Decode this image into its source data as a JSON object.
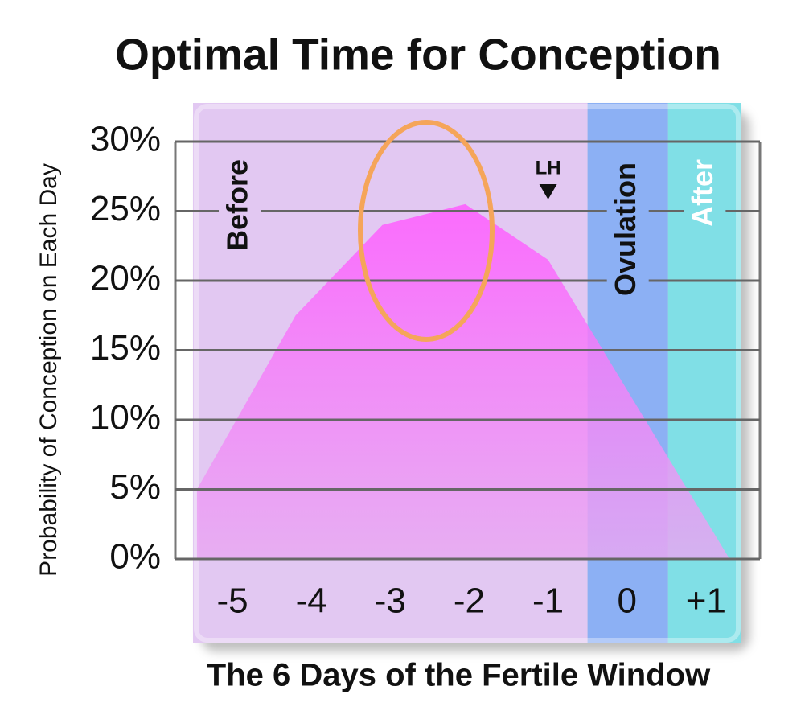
{
  "chart_data": {
    "type": "area",
    "title": "Optimal Time for Conception",
    "x_label": "The 6 Days of the Fertile Window",
    "y_label": "Probability of Conception on Each Day",
    "x": [
      -5.45,
      -4.2,
      -3.1,
      -2.05,
      -1,
      1.3
    ],
    "values": [
      5,
      17.5,
      24,
      25.5,
      21.5,
      0
    ],
    "color": "#f860f8",
    "xlim": [
      -5.5,
      1.45
    ],
    "xticks": [
      -5,
      -4,
      -3,
      -2,
      -1,
      0,
      {
        "value": 1,
        "label": "+1"
      }
    ],
    "ylim": [
      0,
      30
    ],
    "yticks": [
      {
        "value": 0,
        "label": "0%"
      },
      {
        "value": 5,
        "label": "5%"
      },
      {
        "value": 10,
        "label": "10%"
      },
      {
        "value": 15,
        "label": "15%"
      },
      {
        "value": 20,
        "label": "20%"
      },
      {
        "value": 25,
        "label": "25%"
      },
      {
        "value": 30,
        "label": "30%"
      }
    ],
    "grid": true,
    "regions": [
      {
        "label": "Before",
        "from": -5.5,
        "to": -0.5,
        "color": "#e2c8f2",
        "label_color": "#111111"
      },
      {
        "label": "Ovulation",
        "from": -0.5,
        "to": 0.52,
        "color": "#8cb0f4",
        "label_color": "#111111"
      },
      {
        "label": "After",
        "from": 0.52,
        "to": 1.45,
        "color": "#80dfe6",
        "label_color": "#ffffff"
      }
    ],
    "annotations": [
      {
        "text": "LH",
        "x": -1
      }
    ]
  }
}
